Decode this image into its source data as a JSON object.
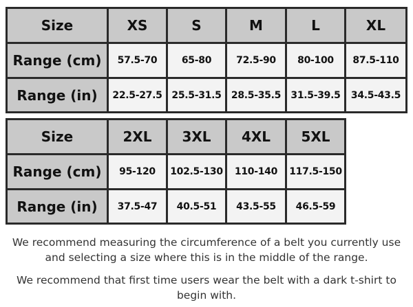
{
  "tables": [
    {
      "header": [
        "Size",
        "XS",
        "S",
        "M",
        "L",
        "XL"
      ],
      "rows": [
        [
          "Range (cm)",
          "57.5-70",
          "65-80",
          "72.5-90",
          "80-100",
          "87.5-110"
        ],
        [
          "Range (in)",
          "22.5-27.5",
          "25.5-31.5",
          "28.5-35.5",
          "31.5-39.5",
          "34.5-43.5"
        ]
      ]
    },
    {
      "header": [
        "Size",
        "2XL",
        "3XL",
        "4XL",
        "5XL"
      ],
      "rows": [
        [
          "Range (cm)",
          "95-120",
          "102.5-130",
          "110-140",
          "117.5-150"
        ],
        [
          "Range (in)",
          "37.5-47",
          "40.5-51",
          "43.5-55",
          "46.5-59"
        ]
      ]
    }
  ],
  "notes": [
    "We recommend measuring the circumference of a belt you currently use and selecting a size where this is in the middle of the range.",
    "We recommend that first time users wear the belt with a dark t-shirt to begin with."
  ]
}
